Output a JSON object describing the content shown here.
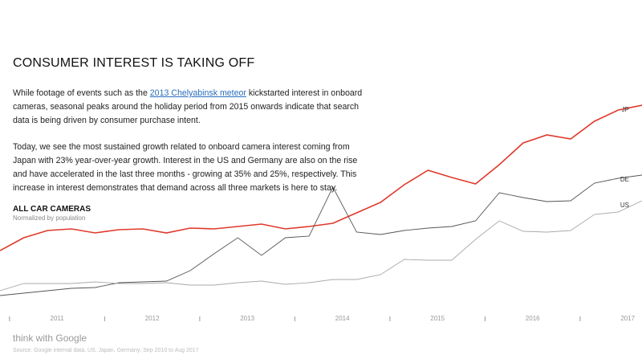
{
  "article": {
    "title": "CONSUMER INTEREST IS TAKING OFF",
    "paragraphs": [
      [
        "While footage of events such as the ",
        "2013 Chelyabinsk meteor",
        " kickstarted interest in onboard cameras, seasonal peaks around the holiday period from 2015 onwards indicate that search data is being driven by consumer purchase intent."
      ],
      [
        "Today, we see the most sustained growth related to onboard camera interest coming from Japan with 23% year-over-year growth. Interest in the US and Germany are also on the rise and have accelerated in the last three months - growing at 35% and 25%, respectively. This increase in interest demonstrates that demand across all three markets is here to stay."
      ]
    ]
  },
  "chart_data": {
    "type": "line",
    "title": "ALL CAR CAMERAS",
    "subtitle": "Normalized by population",
    "x": [
      2010.4,
      2010.65,
      2010.9,
      2011.15,
      2011.4,
      2011.65,
      2011.9,
      2012.15,
      2012.4,
      2012.65,
      2012.9,
      2013.15,
      2013.4,
      2013.65,
      2013.9,
      2014.15,
      2014.4,
      2014.65,
      2014.9,
      2015.15,
      2015.4,
      2015.65,
      2015.9,
      2016.15,
      2016.4,
      2016.65,
      2016.9,
      2017.15
    ],
    "xlim": [
      2010.4,
      2017.15
    ],
    "xticks": [
      2011,
      2012,
      2013,
      2014,
      2015,
      2016,
      2017
    ],
    "ylim": [
      0,
      100
    ],
    "series": [
      {
        "name": "JP",
        "color": "#e0392b",
        "values": [
          23.2,
          29.6,
          33.2,
          34,
          32,
          33.6,
          34,
          32,
          34.4,
          34,
          35.2,
          36.4,
          34,
          35.2,
          36.8,
          42,
          47.2,
          56,
          63.2,
          59.6,
          56.4,
          66,
          76.8,
          80.8,
          78.8,
          87.6,
          93.2,
          95.6
        ]
      },
      {
        "name": "DE",
        "color": "#555555",
        "values": [
          0.8,
          2,
          3.2,
          4.4,
          4.8,
          7.2,
          7.6,
          8,
          13.2,
          21.6,
          29.6,
          20.8,
          29.6,
          30.4,
          54.8,
          32.4,
          31.2,
          33.2,
          34.4,
          35.2,
          38,
          52,
          49.6,
          47.6,
          48,
          56.8,
          59.2,
          60.8
        ]
      },
      {
        "name": "US",
        "color": "#aaaaaa",
        "values": [
          3.2,
          6.8,
          6.8,
          6.8,
          7.6,
          6.8,
          6.8,
          7.2,
          6,
          6,
          7.2,
          8,
          6.4,
          7.2,
          8.8,
          8.8,
          11.2,
          18.8,
          18.4,
          18.4,
          28.8,
          38,
          32.8,
          32.4,
          33.2,
          41.2,
          42.4,
          48
        ]
      }
    ]
  },
  "footer": {
    "brand": "think with Google",
    "source": "Source: Google internal data, US, Japan, Germany; Sep 2010 to Aug 2017"
  }
}
